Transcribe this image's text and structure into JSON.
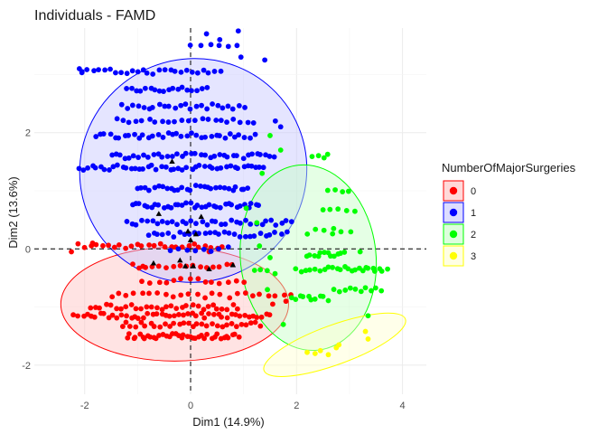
{
  "chart_data": {
    "type": "scatter",
    "title": "Individuals - FAMD",
    "xlabel": "Dim1 (14.9%)",
    "ylabel": "Dim2 (13.6%)",
    "xlim": [
      -2.95,
      4.45
    ],
    "ylim": [
      -2.5,
      3.8
    ],
    "xticks": [
      -2,
      0,
      2,
      4
    ],
    "yticks": [
      -2,
      0,
      2
    ],
    "grid": true,
    "reference_lines": {
      "x": 0,
      "y": 0,
      "style": "dashed"
    },
    "legend": {
      "title": "NumberOfMajorSurgeries",
      "position": "right"
    },
    "series": [
      {
        "name": "0",
        "color": "#ff0000",
        "fill": "#ffc0c0",
        "ellipse": {
          "cx": -0.3,
          "cy": -0.95,
          "rx": 2.15,
          "ry": 0.98,
          "angle": 0
        },
        "clusters": [
          {
            "x": [
              -2.1,
              0.6
            ],
            "y": [
              0.05
            ],
            "n": 26
          },
          {
            "x": [
              -1.1,
              0.8
            ],
            "y": [
              -0.3
            ],
            "n": 16
          },
          {
            "x": [
              -0.9,
              1.0
            ],
            "y": [
              -0.55
            ],
            "n": 14
          },
          {
            "x": [
              -1.5,
              1.9
            ],
            "y": [
              -0.8
            ],
            "n": 24
          },
          {
            "x": [
              -1.9,
              0.9
            ],
            "y": [
              -1.0
            ],
            "n": 30
          },
          {
            "x": [
              -2.2,
              1.5
            ],
            "y": [
              -1.15
            ],
            "n": 46
          },
          {
            "x": [
              -1.3,
              1.3
            ],
            "y": [
              -1.3
            ],
            "n": 30
          },
          {
            "x": [
              -1.2,
              0.9
            ],
            "y": [
              -1.5
            ],
            "n": 38
          }
        ],
        "points": [
          [
            -1.85,
            0.1
          ],
          [
            -2.25,
            -0.05
          ],
          [
            -0.9,
            -0.3
          ],
          [
            1.8,
            -0.9
          ],
          [
            1.55,
            -0.95
          ],
          [
            0.35,
            -0.05
          ]
        ]
      },
      {
        "name": "1",
        "color": "#0000ff",
        "fill": "#c6c6ff",
        "ellipse": {
          "cx": 0.05,
          "cy": 1.35,
          "rx": 2.15,
          "ry": 1.92,
          "angle": -22
        },
        "clusters": [
          {
            "x": [
              -2.05,
              0.55
            ],
            "y": [
              3.05
            ],
            "n": 26
          },
          {
            "x": [
              -1.2,
              0.3
            ],
            "y": [
              2.75
            ],
            "n": 18
          },
          {
            "x": [
              -1.3,
              1.0
            ],
            "y": [
              2.45
            ],
            "n": 24
          },
          {
            "x": [
              -1.4,
              1.2
            ],
            "y": [
              2.2
            ],
            "n": 22
          },
          {
            "x": [
              -1.8,
              1.2
            ],
            "y": [
              1.95
            ],
            "n": 34
          },
          {
            "x": [
              -1.5,
              1.6
            ],
            "y": [
              1.6
            ],
            "n": 36
          },
          {
            "x": [
              -2.1,
              1.4
            ],
            "y": [
              1.4
            ],
            "n": 44
          },
          {
            "x": [
              -1.0,
              1.1
            ],
            "y": [
              1.05
            ],
            "n": 28
          },
          {
            "x": [
              -1.1,
              1.3
            ],
            "y": [
              0.75
            ],
            "n": 34
          },
          {
            "x": [
              -1.2,
              1.9
            ],
            "y": [
              0.45
            ],
            "n": 34
          },
          {
            "x": [
              -0.8,
              1.8
            ],
            "y": [
              0.25
            ],
            "n": 28
          },
          {
            "x": [
              -0.4,
              0.7
            ],
            "y": [
              0.0
            ],
            "n": 8
          },
          {
            "x": [
              0.0,
              0.9
            ],
            "y": [
              3.5
            ],
            "n": 6
          }
        ],
        "points": [
          [
            0.3,
            3.7
          ],
          [
            0.9,
            3.75
          ],
          [
            0.55,
            3.6
          ],
          [
            1.4,
            3.25
          ],
          [
            0.95,
            3.3
          ],
          [
            1.6,
            2.2
          ],
          [
            1.7,
            2.1
          ],
          [
            -2.1,
            3.1
          ],
          [
            -2.05,
            3.05
          ]
        ]
      },
      {
        "name": "2",
        "color": "#00ff00",
        "fill": "#c6ffc6",
        "ellipse": {
          "cx": 2.22,
          "cy": -0.15,
          "rx": 1.28,
          "ry": 1.6,
          "angle": -6
        },
        "clusters": [
          {
            "x": [
              2.3,
              2.6
            ],
            "y": [
              1.6
            ],
            "n": 4
          },
          {
            "x": [
              2.6,
              3.0
            ],
            "y": [
              1.0
            ],
            "n": 4
          },
          {
            "x": [
              2.5,
              3.1
            ],
            "y": [
              0.65
            ],
            "n": 5
          },
          {
            "x": [
              2.2,
              3.0
            ],
            "y": [
              0.3
            ],
            "n": 6
          },
          {
            "x": [
              2.2,
              2.9
            ],
            "y": [
              -0.1
            ],
            "n": 12
          },
          {
            "x": [
              2.7,
              3.7
            ],
            "y": [
              -0.35
            ],
            "n": 16
          },
          {
            "x": [
              2.0,
              2.6
            ],
            "y": [
              -0.35
            ],
            "n": 8
          },
          {
            "x": [
              1.2,
              1.6
            ],
            "y": [
              -0.4
            ],
            "n": 4
          },
          {
            "x": [
              2.7,
              3.6
            ],
            "y": [
              -0.7
            ],
            "n": 10
          },
          {
            "x": [
              1.9,
              2.6
            ],
            "y": [
              -0.85
            ],
            "n": 10
          }
        ],
        "points": [
          [
            1.5,
            1.95
          ],
          [
            1.7,
            1.7
          ],
          [
            1.35,
            1.3
          ],
          [
            1.05,
            0.7
          ],
          [
            1.25,
            0.45
          ],
          [
            1.3,
            0.05
          ],
          [
            3.2,
            -0.05
          ],
          [
            2.7,
            0.35
          ],
          [
            1.45,
            -0.7
          ],
          [
            1.5,
            -0.15
          ],
          [
            3.35,
            -1.15
          ],
          [
            1.75,
            -1.3
          ]
        ]
      },
      {
        "name": "3",
        "color": "#ffff00",
        "fill": "#ffffd0",
        "ellipse": {
          "cx": 2.72,
          "cy": -1.65,
          "rx": 1.42,
          "ry": 0.34,
          "angle": -20
        },
        "clusters": [],
        "points": [
          [
            2.2,
            -1.78
          ],
          [
            2.35,
            -1.8
          ],
          [
            2.45,
            -1.75
          ],
          [
            2.6,
            -1.82
          ],
          [
            2.75,
            -1.7
          ],
          [
            2.8,
            -1.65
          ],
          [
            3.35,
            -1.55
          ],
          [
            3.3,
            -1.42
          ]
        ]
      }
    ],
    "means": [
      [
        -0.35,
        1.5
      ],
      [
        -0.6,
        0.6
      ],
      [
        0.2,
        0.55
      ],
      [
        0.0,
        0.15
      ],
      [
        0.1,
        0.25
      ],
      [
        -0.05,
        0.3
      ],
      [
        -0.7,
        -0.25
      ],
      [
        -0.1,
        -0.3
      ],
      [
        0.05,
        -0.3
      ],
      [
        0.35,
        -0.35
      ],
      [
        0.8,
        -0.28
      ],
      [
        -0.2,
        -0.2
      ]
    ]
  }
}
